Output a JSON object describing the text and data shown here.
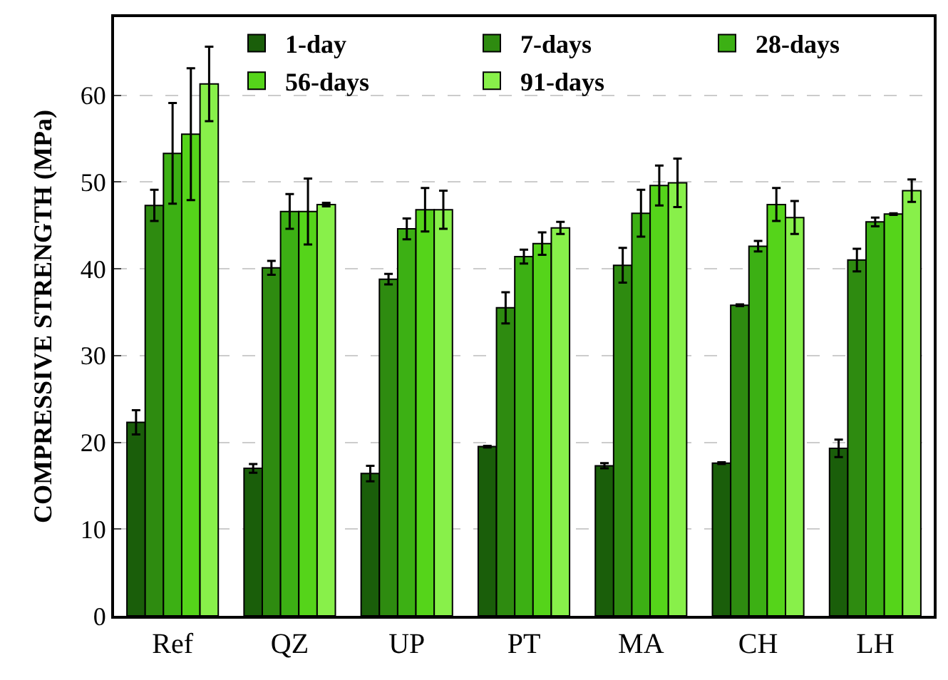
{
  "chart_data": {
    "type": "bar",
    "ylabel": "COMPRESSIVE STRENGTH (MPa)",
    "categories": [
      "Ref",
      "QZ",
      "UP",
      "PT",
      "MA",
      "CH",
      "LH"
    ],
    "series": [
      {
        "name": "1-day",
        "color": "#1a5e0a",
        "values": [
          22.3,
          17.0,
          16.4,
          19.5,
          17.3,
          17.6,
          19.3
        ],
        "errors": [
          1.4,
          0.5,
          0.9,
          0.1,
          0.3,
          0.1,
          1.0
        ]
      },
      {
        "name": "7-days",
        "color": "#2e8b10",
        "values": [
          47.3,
          40.1,
          38.8,
          35.5,
          40.4,
          35.8,
          41.0
        ],
        "errors": [
          1.8,
          0.8,
          0.6,
          1.8,
          2.0,
          0.1,
          1.3
        ]
      },
      {
        "name": "28-days",
        "color": "#3cb014",
        "values": [
          53.3,
          46.6,
          44.6,
          41.4,
          46.4,
          42.6,
          45.4
        ],
        "errors": [
          5.8,
          2.0,
          1.2,
          0.8,
          2.7,
          0.6,
          0.5
        ]
      },
      {
        "name": "56-days",
        "color": "#55d41a",
        "values": [
          55.5,
          46.6,
          46.8,
          42.9,
          49.6,
          47.4,
          46.3
        ],
        "errors": [
          7.6,
          3.8,
          2.5,
          1.3,
          2.3,
          1.9,
          0.1
        ]
      },
      {
        "name": "91-days",
        "color": "#88f04a",
        "values": [
          61.3,
          47.4,
          46.8,
          44.7,
          49.9,
          45.9,
          49.0
        ],
        "errors": [
          4.3,
          0.2,
          2.2,
          0.7,
          2.8,
          1.9,
          1.3
        ]
      }
    ],
    "ylim": [
      0,
      69
    ],
    "yticks": [
      0,
      10,
      20,
      30,
      40,
      50,
      60
    ],
    "grid": "y",
    "legend": "top right"
  }
}
